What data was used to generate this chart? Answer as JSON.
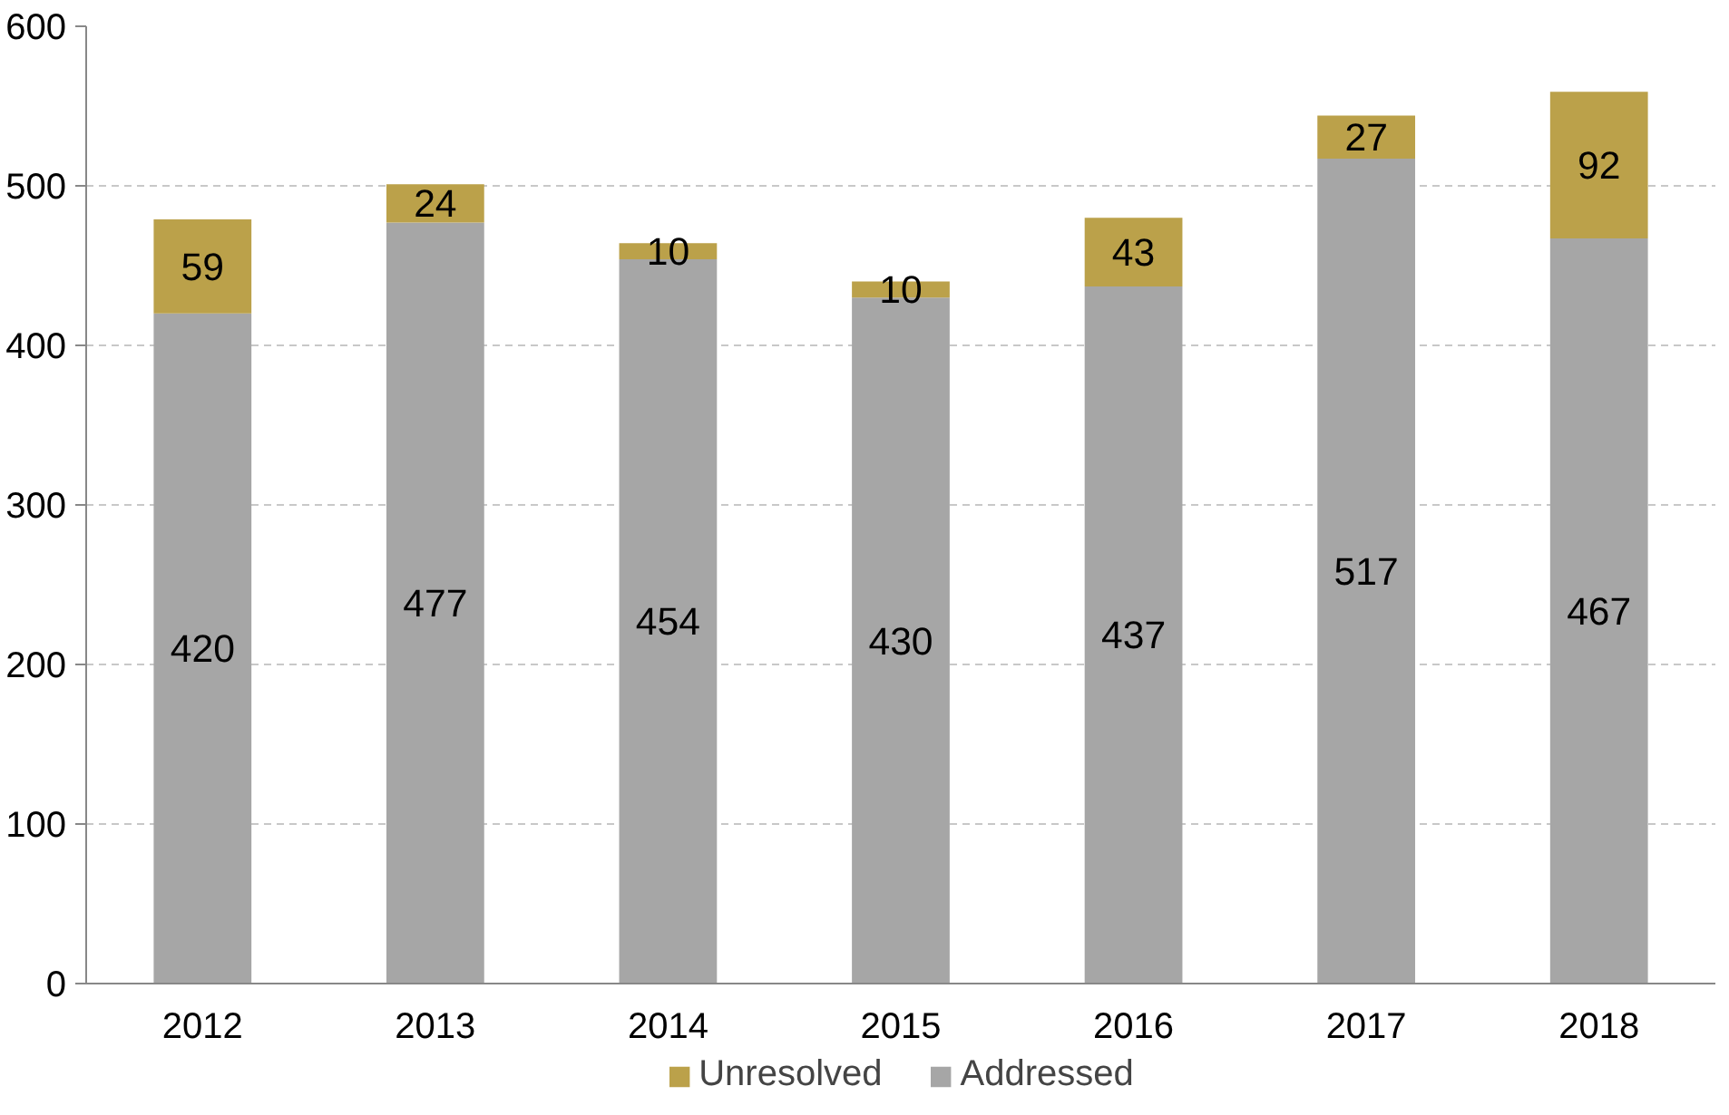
{
  "chart_data": {
    "type": "bar",
    "stacked": true,
    "categories": [
      "2012",
      "2013",
      "2014",
      "2015",
      "2016",
      "2017",
      "2018"
    ],
    "series": [
      {
        "name": "Addressed",
        "color": "#a6a6a6",
        "values": [
          420,
          477,
          454,
          430,
          437,
          517,
          467
        ]
      },
      {
        "name": "Unresolved",
        "color": "#bba14a",
        "values": [
          59,
          24,
          10,
          10,
          43,
          27,
          92
        ]
      }
    ],
    "ylim": [
      0,
      600
    ],
    "yticks": [
      0,
      100,
      200,
      300,
      400,
      500,
      600
    ],
    "grid": "y",
    "legend": "bottom",
    "data_labels": true
  }
}
